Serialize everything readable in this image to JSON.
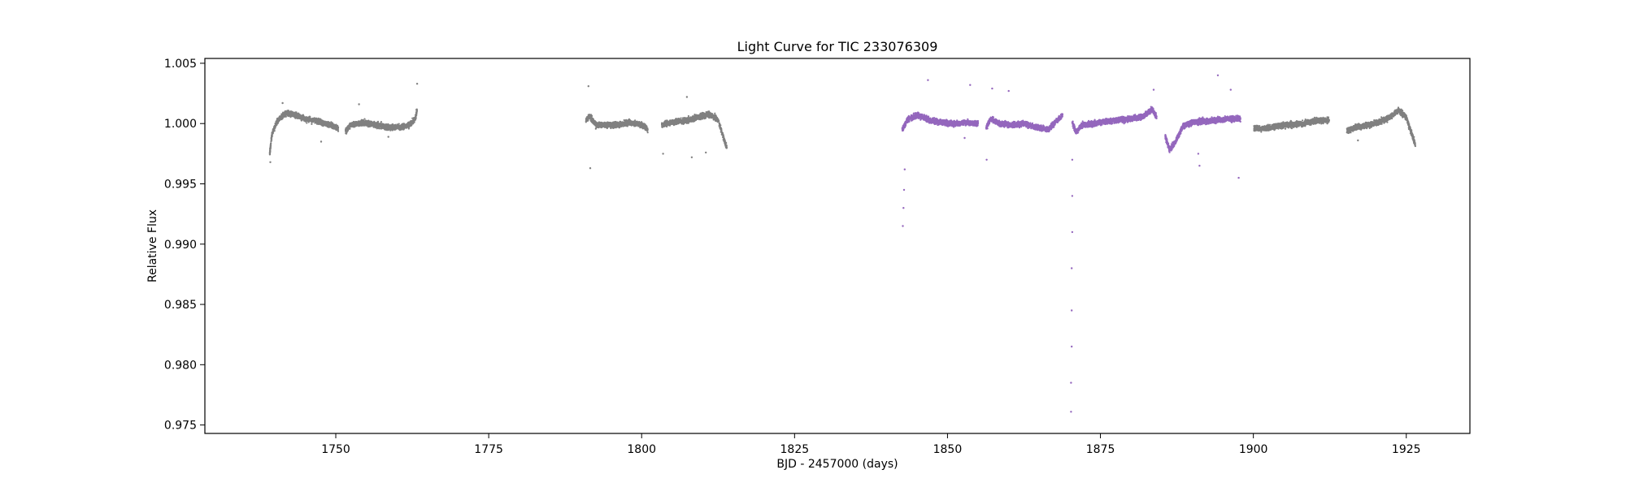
{
  "chart_data": {
    "type": "scatter",
    "title": "Light Curve for TIC 233076309",
    "xlabel": "BJD - 2457000 (days)",
    "ylabel": "Relative Flux",
    "xlim": [
      1728.6,
      1935.4
    ],
    "ylim": [
      0.9743,
      1.0054
    ],
    "x_ticks": [
      1750,
      1775,
      1800,
      1825,
      1850,
      1875,
      1900,
      1925
    ],
    "x_tick_labels": [
      "1750",
      "1775",
      "1800",
      "1825",
      "1850",
      "1875",
      "1900",
      "1925"
    ],
    "y_ticks": [
      0.975,
      0.98,
      0.985,
      0.99,
      0.995,
      1.0,
      1.005
    ],
    "y_tick_labels": [
      "0.975",
      "0.980",
      "0.985",
      "0.990",
      "0.995",
      "1.000",
      "1.005"
    ],
    "grid": false,
    "series": [
      {
        "color": "#808080",
        "segments": [
          {
            "start": 1739.2,
            "end": 1750.4,
            "points": [
              [
                1739.2,
                0.9975
              ],
              [
                1739.6,
                0.9992
              ],
              [
                1740.5,
                1.0003
              ],
              [
                1742.0,
                1.0009
              ],
              [
                1743.5,
                1.0007
              ],
              [
                1745.0,
                1.0004
              ],
              [
                1747.0,
                1.0002
              ],
              [
                1749.0,
                0.9999
              ],
              [
                1750.4,
                0.9996
              ]
            ]
          },
          {
            "start": 1751.6,
            "end": 1763.3,
            "points": [
              [
                1751.6,
                0.9994
              ],
              [
                1752.5,
                0.9999
              ],
              [
                1754.5,
                1.0001
              ],
              [
                1756.5,
                0.9999
              ],
              [
                1758.5,
                0.9997
              ],
              [
                1760.5,
                0.9997
              ],
              [
                1762.0,
                0.9999
              ],
              [
                1763.0,
                1.0004
              ],
              [
                1763.3,
                1.0012
              ]
            ]
          },
          {
            "start": 1790.9,
            "end": 1801.0,
            "points": [
              [
                1790.9,
                1.0003
              ],
              [
                1791.5,
                1.0006
              ],
              [
                1792.5,
                0.9999
              ],
              [
                1794.0,
                0.9999
              ],
              [
                1796.0,
                0.9999
              ],
              [
                1798.0,
                1.0001
              ],
              [
                1800.0,
                0.9999
              ],
              [
                1801.0,
                0.9995
              ]
            ]
          },
          {
            "start": 1803.3,
            "end": 1813.9,
            "points": [
              [
                1803.3,
                0.9999
              ],
              [
                1805.0,
                1.0001
              ],
              [
                1807.0,
                1.0002
              ],
              [
                1809.0,
                1.0005
              ],
              [
                1811.0,
                1.0008
              ],
              [
                1812.5,
                1.0003
              ],
              [
                1813.9,
                0.998
              ]
            ]
          },
          {
            "start": 1915.3,
            "end": 1926.5,
            "points": [
              [
                1915.3,
                0.9994
              ],
              [
                1917.0,
                0.9997
              ],
              [
                1919.0,
                0.9999
              ],
              [
                1921.0,
                1.0002
              ],
              [
                1922.5,
                1.0006
              ],
              [
                1923.8,
                1.0011
              ],
              [
                1925.0,
                1.0005
              ],
              [
                1926.0,
                0.999
              ],
              [
                1926.5,
                0.9982
              ]
            ]
          },
          {
            "start": 1900.1,
            "end": 1912.4,
            "points": [
              [
                1900.1,
                0.9996
              ],
              [
                1902.0,
                0.9996
              ],
              [
                1904.0,
                0.9998
              ],
              [
                1906.0,
                0.9999
              ],
              [
                1908.0,
                1.0
              ],
              [
                1910.0,
                1.0002
              ],
              [
                1912.4,
                1.0003
              ]
            ]
          }
        ],
        "outliers": [
          [
            1739.3,
            0.9968
          ],
          [
            1741.3,
            1.0017
          ],
          [
            1747.6,
            0.9985
          ],
          [
            1753.8,
            1.0016
          ],
          [
            1758.6,
            0.9989
          ],
          [
            1763.3,
            1.0033
          ],
          [
            1791.3,
            1.0031
          ],
          [
            1791.6,
            0.9963
          ],
          [
            1803.5,
            0.9975
          ],
          [
            1807.4,
            1.0022
          ],
          [
            1808.2,
            0.9972
          ],
          [
            1810.5,
            0.9976
          ],
          [
            1917.1,
            0.9986
          ]
        ]
      },
      {
        "color": "#9467bd",
        "segments": [
          {
            "start": 1842.6,
            "end": 1855.0,
            "points": [
              [
                1842.6,
                0.9995
              ],
              [
                1843.5,
                1.0003
              ],
              [
                1845.0,
                1.0007
              ],
              [
                1847.0,
                1.0003
              ],
              [
                1849.0,
                1.0001
              ],
              [
                1851.0,
                1.0
              ],
              [
                1853.0,
                1.0001
              ],
              [
                1855.0,
                1.0
              ]
            ]
          },
          {
            "start": 1856.3,
            "end": 1868.8,
            "points": [
              [
                1856.3,
                0.9996
              ],
              [
                1857.0,
                1.0004
              ],
              [
                1858.5,
                1.0
              ],
              [
                1860.5,
                0.9999
              ],
              [
                1862.5,
                1.0
              ],
              [
                1864.5,
                0.9997
              ],
              [
                1866.5,
                0.9995
              ],
              [
                1868.0,
                1.0003
              ],
              [
                1868.8,
                1.0007
              ]
            ]
          },
          {
            "start": 1870.4,
            "end": 1884.2,
            "points": [
              [
                1870.4,
                1.0001
              ],
              [
                1871.0,
                0.9993
              ],
              [
                1872.0,
                0.9999
              ],
              [
                1874.0,
                1.0
              ],
              [
                1876.0,
                1.0002
              ],
              [
                1878.0,
                1.0003
              ],
              [
                1880.0,
                1.0004
              ],
              [
                1882.0,
                1.0006
              ],
              [
                1883.5,
                1.0012
              ],
              [
                1884.2,
                1.0005
              ]
            ]
          },
          {
            "start": 1885.6,
            "end": 1897.9,
            "points": [
              [
                1885.6,
                0.999
              ],
              [
                1886.3,
                0.9978
              ],
              [
                1887.3,
                0.9985
              ],
              [
                1888.5,
                0.9998
              ],
              [
                1890.0,
                1.0001
              ],
              [
                1892.0,
                1.0002
              ],
              [
                1894.0,
                1.0003
              ],
              [
                1896.0,
                1.0004
              ],
              [
                1897.9,
                1.0004
              ]
            ]
          }
        ],
        "outliers": [
          [
            1842.7,
            0.9915
          ],
          [
            1842.8,
            0.993
          ],
          [
            1842.9,
            0.9945
          ],
          [
            1843.0,
            0.9962
          ],
          [
            1846.8,
            1.0036
          ],
          [
            1852.8,
            0.9988
          ],
          [
            1853.7,
            1.0032
          ],
          [
            1856.4,
            0.997
          ],
          [
            1857.3,
            1.0029
          ],
          [
            1860.0,
            1.0027
          ],
          [
            1870.2,
            0.9761
          ],
          [
            1870.2,
            0.9785
          ],
          [
            1870.3,
            0.9815
          ],
          [
            1870.3,
            0.9845
          ],
          [
            1870.3,
            0.988
          ],
          [
            1870.4,
            0.991
          ],
          [
            1870.4,
            0.994
          ],
          [
            1870.4,
            0.997
          ],
          [
            1883.7,
            1.0028
          ],
          [
            1891.0,
            0.9975
          ],
          [
            1891.2,
            0.9965
          ],
          [
            1894.2,
            1.004
          ],
          [
            1896.3,
            1.0028
          ],
          [
            1897.6,
            0.9955
          ]
        ]
      }
    ]
  }
}
